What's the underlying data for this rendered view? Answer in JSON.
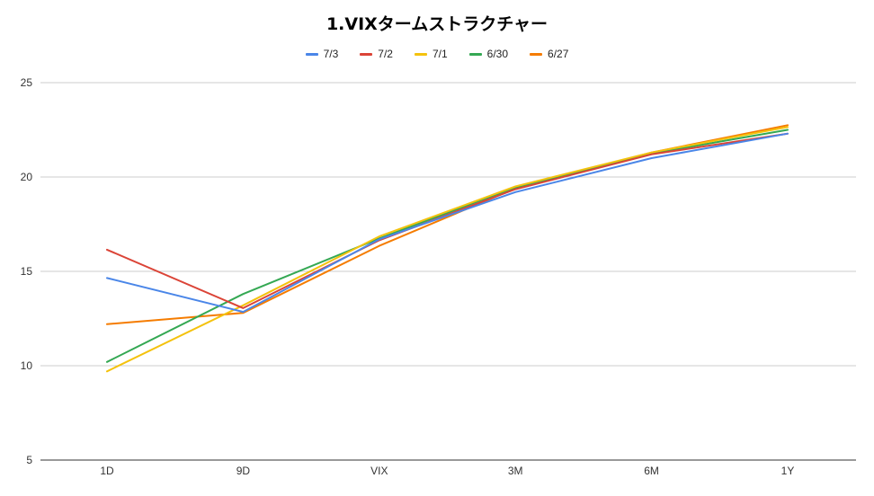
{
  "chart_data": {
    "type": "line",
    "title": "1.VIXタームストラクチャー",
    "xlabel": "",
    "ylabel": "",
    "categories": [
      "1D",
      "9D",
      "VIX",
      "3M",
      "6M",
      "1Y"
    ],
    "ylim": [
      5,
      25
    ],
    "yticks": [
      "5",
      "10",
      "15",
      "20",
      "25"
    ],
    "grid": true,
    "legend_position": "top",
    "series": [
      {
        "name": "7/3",
        "color": "#4a86e8",
        "values": [
          14.65,
          12.85,
          16.7,
          19.2,
          21.0,
          22.3
        ]
      },
      {
        "name": "7/2",
        "color": "#db4437",
        "values": [
          16.15,
          13.05,
          16.65,
          19.35,
          21.2,
          22.3
        ]
      },
      {
        "name": "7/1",
        "color": "#f4c20d",
        "values": [
          9.7,
          13.2,
          16.85,
          19.5,
          21.3,
          22.65
        ]
      },
      {
        "name": "6/30",
        "color": "#34a853",
        "values": [
          10.2,
          13.8,
          16.75,
          19.45,
          21.25,
          22.5
        ]
      },
      {
        "name": "6/27",
        "color": "#f57c00",
        "values": [
          12.2,
          12.8,
          16.35,
          19.4,
          21.3,
          22.75
        ]
      }
    ]
  }
}
